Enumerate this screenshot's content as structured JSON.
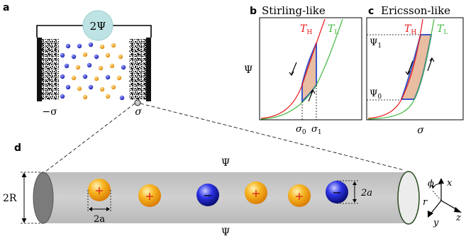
{
  "panel_labels": {
    "a": "a",
    "b": "b",
    "c": "c",
    "d": "d"
  },
  "panel_a": {
    "source_label": "2Ψ",
    "left_electrode_label": "−σ",
    "right_electrode_label": "σ"
  },
  "panel_b": {
    "title": "Stirling-like",
    "ylabel": "Ψ",
    "curve_hot": "T",
    "curve_hot_sub": "H",
    "curve_cold": "T",
    "curve_cold_sub": "L",
    "tick_sigma0": "σ",
    "tick_sigma0_sub": "0",
    "tick_sigma1": "σ",
    "tick_sigma1_sub": "1"
  },
  "panel_c": {
    "title": "Ericsson-like",
    "xlabel": "σ",
    "curve_hot": "T",
    "curve_hot_sub": "H",
    "curve_cold": "T",
    "curve_cold_sub": "L",
    "tick_psi1": "Ψ",
    "tick_psi1_sub": "1",
    "tick_psi0": "Ψ",
    "tick_psi0_sub": "0"
  },
  "panel_d": {
    "potential_top": "Ψ",
    "potential_bottom": "Ψ",
    "radius_label": "2R",
    "ion_diameter_label_bottom": "2a",
    "ion_diameter_label_right": "2a",
    "cation_symbol": "+",
    "anion_symbol": "−",
    "axis_phi": "ϕ",
    "axis_x": "x",
    "axis_r": "r",
    "axis_z": "z",
    "axis_y": "y"
  },
  "colors": {
    "hot_curve": "#e8191c",
    "cold_curve": "#3fb83f",
    "cycle_fill": "#e9bda1",
    "cycle_edge": "#3a55c8",
    "cation": "#f2a21a",
    "anion": "#2a30d8",
    "source_fill": "#bde3e4",
    "pore_body": "#c8c8c8"
  }
}
